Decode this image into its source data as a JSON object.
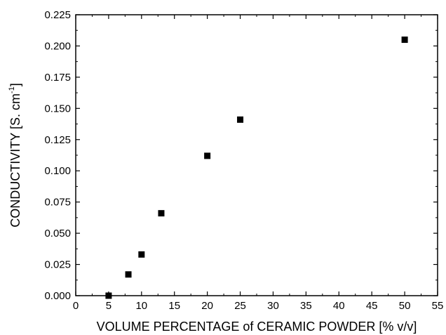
{
  "chart_data": {
    "type": "scatter",
    "xlabel": "VOLUME PERCENTAGE of CERAMIC POWDER [% v/v]",
    "ylabel_main": "CONDUCTIVITY [S. cm",
    "ylabel_sup": "-1",
    "ylabel_close": "]",
    "xlim": [
      0,
      55
    ],
    "ylim": [
      0,
      0.225
    ],
    "x_ticks": [
      "0",
      "5",
      "10",
      "15",
      "20",
      "25",
      "30",
      "35",
      "40",
      "45",
      "50",
      "55"
    ],
    "y_ticks": [
      "0.000",
      "0.025",
      "0.050",
      "0.075",
      "0.100",
      "0.125",
      "0.150",
      "0.175",
      "0.200",
      "0.225"
    ],
    "marker": "square",
    "marker_color": "#000000",
    "grid": false,
    "points": [
      {
        "x": 5,
        "y": 0.0
      },
      {
        "x": 8,
        "y": 0.017
      },
      {
        "x": 10,
        "y": 0.033
      },
      {
        "x": 13,
        "y": 0.066
      },
      {
        "x": 20,
        "y": 0.112
      },
      {
        "x": 25,
        "y": 0.141
      },
      {
        "x": 50,
        "y": 0.205
      }
    ]
  }
}
